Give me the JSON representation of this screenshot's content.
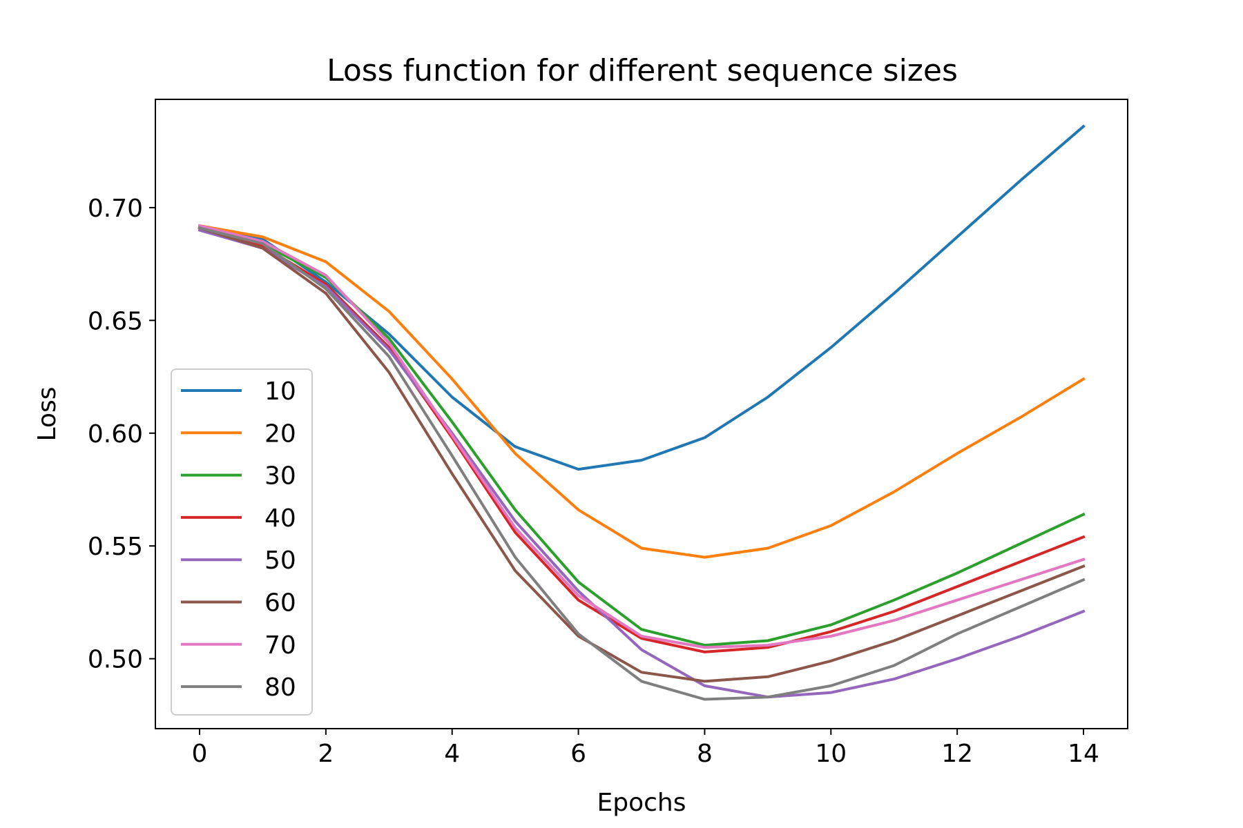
{
  "chart_data": {
    "type": "line",
    "title": "Loss function for different sequence sizes",
    "xlabel": "Epochs",
    "ylabel": "Loss",
    "x": [
      0,
      1,
      2,
      3,
      4,
      5,
      6,
      7,
      8,
      9,
      10,
      11,
      12,
      13,
      14
    ],
    "xlim": [
      -0.7,
      14.7
    ],
    "ylim": [
      0.469,
      0.748
    ],
    "xticks": [
      0,
      2,
      4,
      6,
      8,
      10,
      12,
      14
    ],
    "yticks": [
      0.5,
      0.55,
      0.6,
      0.65,
      0.7
    ],
    "xtick_labels": [
      "0",
      "2",
      "4",
      "6",
      "8",
      "10",
      "12",
      "14"
    ],
    "ytick_labels": [
      "0.50",
      "0.55",
      "0.60",
      "0.65",
      "0.70"
    ],
    "grid": false,
    "legend_position": "center-left",
    "series": [
      {
        "name": "10",
        "color": "#1f77b4",
        "values": [
          0.691,
          0.686,
          0.667,
          0.644,
          0.616,
          0.594,
          0.584,
          0.588,
          0.598,
          0.616,
          0.638,
          0.662,
          0.687,
          0.712,
          0.736
        ]
      },
      {
        "name": "20",
        "color": "#ff7f0e",
        "values": [
          0.692,
          0.687,
          0.676,
          0.654,
          0.624,
          0.591,
          0.566,
          0.549,
          0.545,
          0.549,
          0.559,
          0.574,
          0.591,
          0.607,
          0.624
        ]
      },
      {
        "name": "30",
        "color": "#2ca02c",
        "values": [
          0.691,
          0.684,
          0.669,
          0.642,
          0.605,
          0.566,
          0.534,
          0.513,
          0.506,
          0.508,
          0.515,
          0.526,
          0.538,
          0.551,
          0.564
        ]
      },
      {
        "name": "40",
        "color": "#d62728",
        "values": [
          0.691,
          0.683,
          0.666,
          0.638,
          0.598,
          0.556,
          0.526,
          0.509,
          0.503,
          0.505,
          0.512,
          0.521,
          0.532,
          0.543,
          0.554
        ]
      },
      {
        "name": "50",
        "color": "#9467bd",
        "values": [
          0.69,
          0.682,
          0.665,
          0.637,
          0.6,
          0.561,
          0.53,
          0.504,
          0.488,
          0.483,
          0.485,
          0.491,
          0.5,
          0.51,
          0.521
        ]
      },
      {
        "name": "60",
        "color": "#8c564b",
        "values": [
          0.691,
          0.682,
          0.662,
          0.627,
          0.582,
          0.539,
          0.51,
          0.494,
          0.49,
          0.492,
          0.499,
          0.508,
          0.519,
          0.53,
          0.541
        ]
      },
      {
        "name": "70",
        "color": "#e377c2",
        "values": [
          0.692,
          0.685,
          0.67,
          0.64,
          0.599,
          0.558,
          0.528,
          0.51,
          0.505,
          0.506,
          0.51,
          0.517,
          0.526,
          0.535,
          0.544
        ]
      },
      {
        "name": "80",
        "color": "#7f7f7f",
        "values": [
          0.691,
          0.684,
          0.664,
          0.634,
          0.59,
          0.545,
          0.511,
          0.49,
          0.482,
          0.483,
          0.488,
          0.497,
          0.511,
          0.523,
          0.535
        ]
      }
    ]
  }
}
